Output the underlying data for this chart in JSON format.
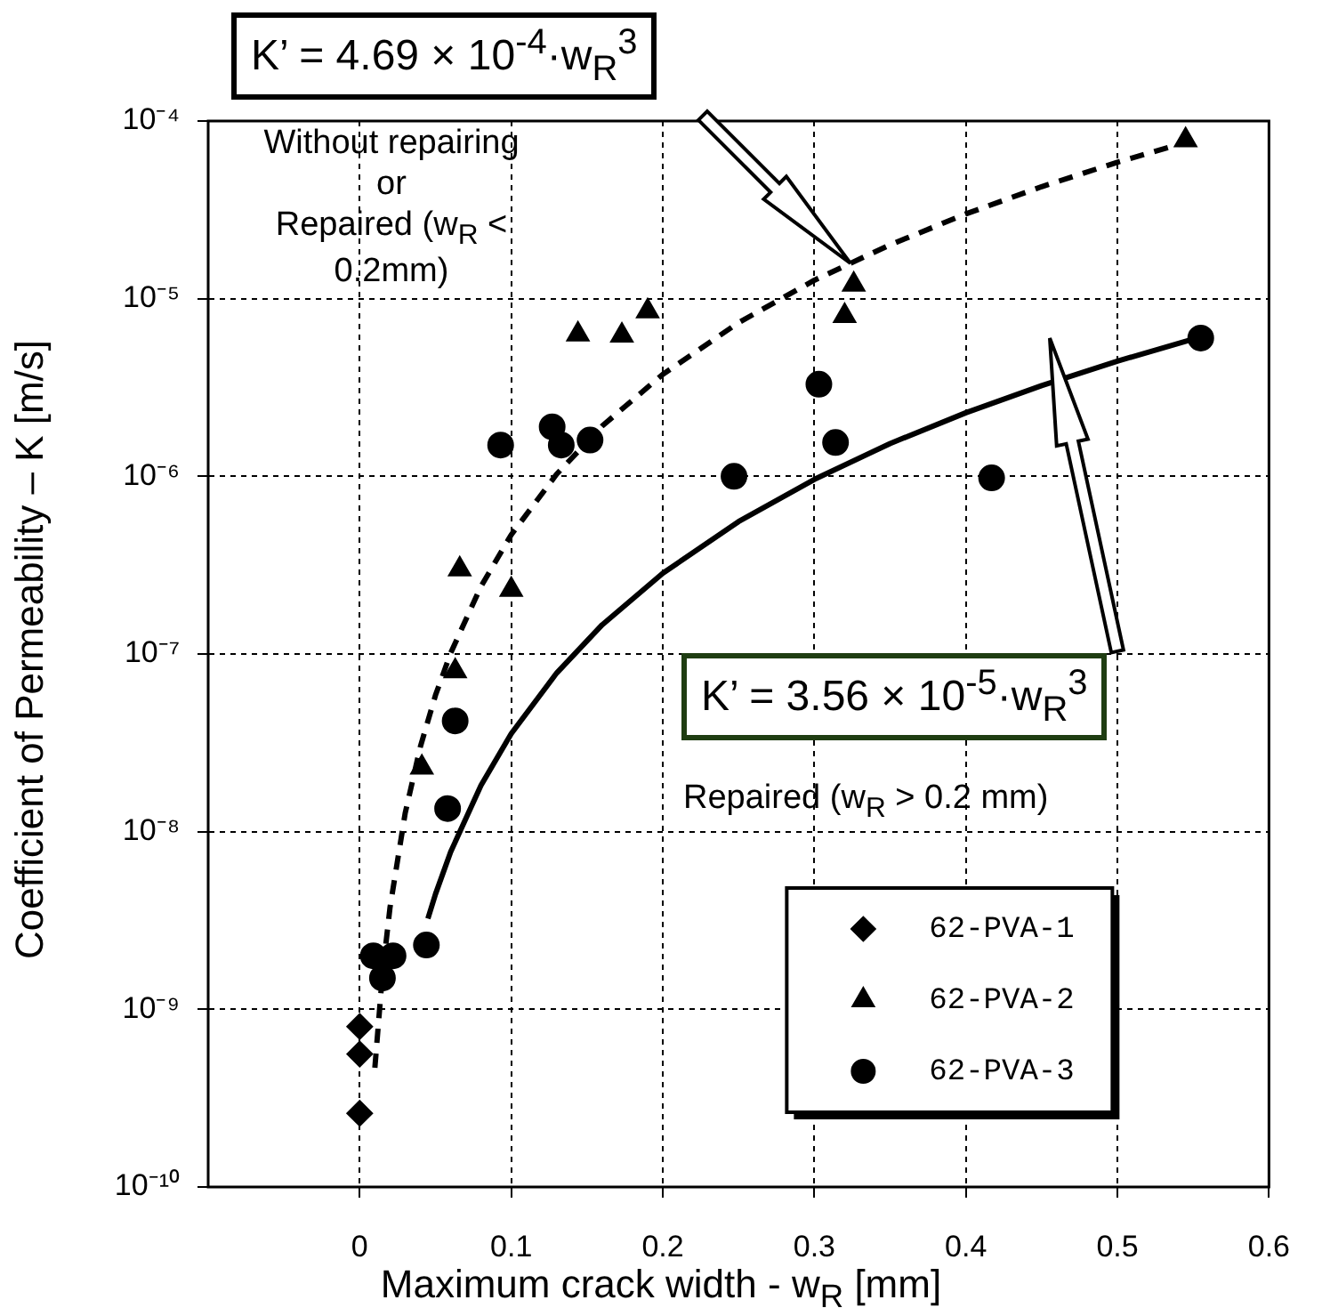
{
  "chart_data": {
    "type": "scatter",
    "xlabel": "Maximum crack width - w$_{R}$ [mm]",
    "ylabel": "Coefficient of Permeability – K  [m/s]",
    "xlim": [
      -0.1,
      0.6
    ],
    "xticks": [
      0,
      0.1,
      0.2,
      0.3,
      0.4,
      0.5,
      0.6
    ],
    "ylim": [
      1e-10,
      0.0001
    ],
    "yticks": [
      {
        "value": 0.0001,
        "label": "10⁻⁴"
      },
      {
        "value": 1e-05,
        "label": "10⁻⁵"
      },
      {
        "value": 1e-06,
        "label": "10⁻⁶"
      },
      {
        "value": 1e-07,
        "label": "10⁻⁷"
      },
      {
        "value": 1e-08,
        "label": "10⁻⁸"
      },
      {
        "value": 1e-09,
        "label": "10⁻⁹"
      },
      {
        "value": 1e-10,
        "label": "10⁻¹⁰"
      }
    ],
    "log": "y",
    "grid": true,
    "legend": "bottom right",
    "annotations": [
      "K’ = 4.69 × 10$^{-4}$·w$_{R}$$^{3}$",
      "K’ = 3.56 × 10$^{-5}$·w$_{R}$$^{3}$",
      "Without repairing\nor\nRepaired (w$_{R}$ <\n0.2mm)",
      "Repaired (w$_{R}$ > 0.2 mm)"
    ],
    "series": [
      {
        "name": "62-PVA-1",
        "marker": "diamond",
        "color": "#000000",
        "x": [
          0,
          0,
          0
        ],
        "values": [
          8e-10,
          5.6e-10,
          2.6e-10
        ]
      },
      {
        "name": "62-PVA-2",
        "marker": "triangle",
        "color": "#000000",
        "x": [
          0.545,
          0.326,
          0.32,
          0.19,
          0.173,
          0.144,
          0.066,
          0.1,
          0.063,
          0.041
        ],
        "values": [
          7.8e-05,
          1.2e-05,
          8e-06,
          8.5e-06,
          6.2e-06,
          6.3e-06,
          3e-07,
          2.3e-07,
          8e-08,
          2.3e-08
        ]
      },
      {
        "name": "62-PVA-3",
        "marker": "circle",
        "color": "#000000",
        "x": [
          0.555,
          0.303,
          0.314,
          0.247,
          0.417,
          0.093,
          0.127,
          0.133,
          0.152,
          0.063,
          0.058,
          0.044,
          0.009,
          0.022,
          0.015
        ],
        "values": [
          6e-06,
          3.3e-06,
          1.55e-06,
          1e-06,
          9.8e-07,
          1.5e-06,
          1.9e-06,
          1.5e-06,
          1.6e-06,
          4.2e-08,
          1.35e-08,
          2.3e-09,
          2e-09,
          2e-09,
          1.5e-09
        ]
      },
      {
        "type": "line",
        "line_style": "dashed",
        "marker": "none",
        "color": "#000000",
        "x": [
          0.01,
          0.015,
          0.02,
          0.03,
          0.04,
          0.05,
          0.06,
          0.08,
          0.1,
          0.13,
          0.16,
          0.2,
          0.25,
          0.3,
          0.35,
          0.4,
          0.45,
          0.5,
          0.55
        ],
        "values": [
          4.69e-10,
          1.58e-09,
          3.75e-09,
          1.27e-08,
          3e-08,
          5.86e-08,
          1.01e-07,
          2.4e-07,
          4.69e-07,
          1.03e-06,
          1.92e-06,
          3.75e-06,
          7.33e-06,
          1.27e-05,
          2.01e-05,
          3e-05,
          4.27e-05,
          5.86e-05,
          7.8e-05
        ]
      },
      {
        "type": "line",
        "line_style": "solid",
        "marker": "none",
        "color": "#000000",
        "x": [
          0.045,
          0.05,
          0.06,
          0.08,
          0.1,
          0.13,
          0.16,
          0.2,
          0.25,
          0.3,
          0.35,
          0.4,
          0.45,
          0.5,
          0.555
        ],
        "values": [
          3.24e-09,
          4.45e-09,
          7.69e-09,
          1.82e-08,
          3.56e-08,
          7.82e-08,
          1.46e-07,
          2.85e-07,
          5.56e-07,
          9.61e-07,
          1.53e-06,
          2.28e-06,
          3.24e-06,
          4.45e-06,
          6.09e-06
        ]
      }
    ]
  }
}
